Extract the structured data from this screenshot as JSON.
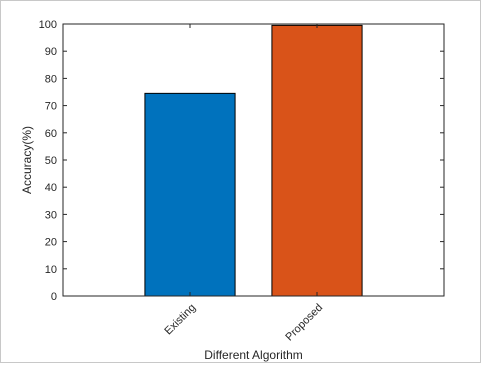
{
  "chart_data": {
    "type": "bar",
    "categories": [
      "Existing",
      "Proposed"
    ],
    "values": [
      74.5,
      99.5
    ],
    "colors": [
      "#0072BD",
      "#D95319"
    ],
    "xlabel": "Different Algorithm",
    "ylabel": "Accuracy(%)",
    "ylim": [
      0,
      100
    ],
    "yticks": [
      0,
      10,
      20,
      30,
      40,
      50,
      60,
      70,
      80,
      90,
      100
    ],
    "ytick_labels": [
      "0",
      "10",
      "20",
      "30",
      "40",
      "50",
      "60",
      "70",
      "80",
      "90",
      "100"
    ],
    "grid": false,
    "box": true
  }
}
